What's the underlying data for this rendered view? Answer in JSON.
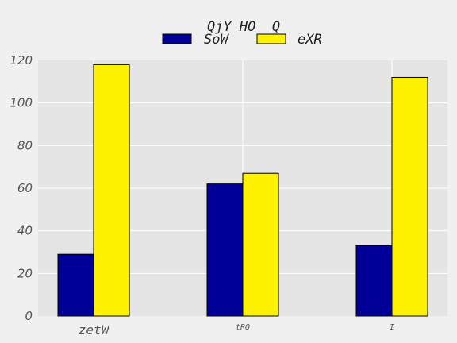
{
  "chart_data": {
    "type": "bar",
    "legend_title": "QjY HO  Q",
    "categories": [
      "zetW",
      "tRQ",
      "I"
    ],
    "series": [
      {
        "name": "SoW",
        "values": [
          29,
          62,
          33
        ],
        "color": "#000099"
      },
      {
        "name": "eXR",
        "values": [
          118,
          67,
          112
        ],
        "color": "#fff200"
      }
    ],
    "ylim": [
      0,
      120
    ],
    "yticks": [
      0,
      20,
      40,
      60,
      80,
      100,
      120
    ],
    "grid": true,
    "legend_position": "top-center",
    "background_color": "#e5e5e5"
  }
}
